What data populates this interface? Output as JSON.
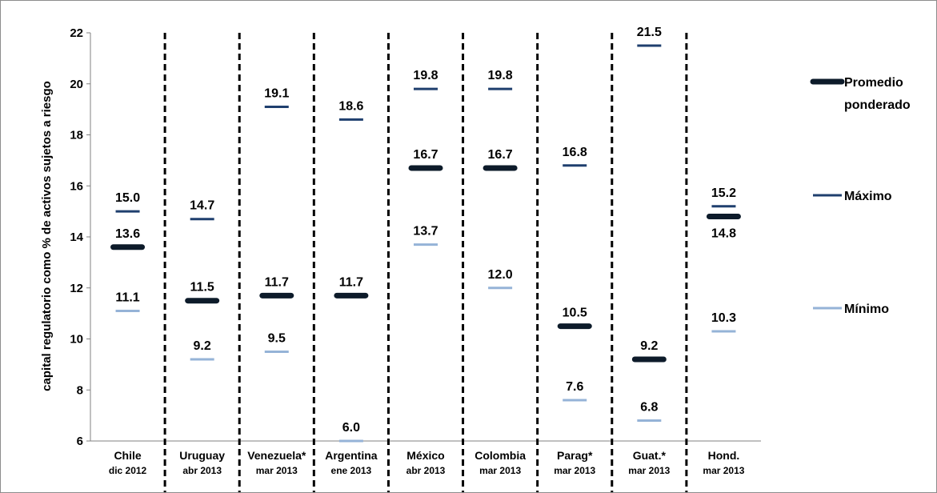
{
  "chart_data": {
    "type": "scatter",
    "ylabel": "capital regulatorio como % de activos sujetos a riesgo",
    "ylim": [
      6,
      22
    ],
    "y_ticks": [
      "6",
      "8",
      "10",
      "12",
      "14",
      "16",
      "18",
      "20",
      "22"
    ],
    "grid": false,
    "legend_position": "right",
    "categories": [
      {
        "name": "Chile",
        "date": "dic 2012"
      },
      {
        "name": "Uruguay",
        "date": "abr 2013"
      },
      {
        "name": "Venezuela*",
        "date": "mar 2013"
      },
      {
        "name": "Argentina",
        "date": "ene 2013"
      },
      {
        "name": "México",
        "date": "abr 2013"
      },
      {
        "name": "Colombia",
        "date": "mar 2013"
      },
      {
        "name": "Parag*",
        "date": "mar 2013"
      },
      {
        "name": "Guat.*",
        "date": "mar 2013"
      },
      {
        "name": "Hond.",
        "date": "mar 2013"
      }
    ],
    "series": [
      {
        "name": "Promedio ponderado",
        "color": "#0d1b2a",
        "values": [
          13.6,
          11.5,
          11.7,
          11.7,
          16.7,
          16.7,
          10.5,
          9.2,
          14.8
        ],
        "labels": [
          "13.6",
          "11.5",
          "11.7",
          "11.7",
          "16.7",
          "16.7",
          "10.5",
          "9.2",
          "14.8"
        ]
      },
      {
        "name": "Máximo",
        "color": "#1f3f6e",
        "values": [
          15.0,
          14.7,
          19.1,
          18.6,
          19.8,
          19.8,
          16.8,
          21.5,
          15.2
        ],
        "labels": [
          "15.0",
          "14.7",
          "19.1",
          "18.6",
          "19.8",
          "19.8",
          "16.8",
          "21.5",
          "15.2"
        ]
      },
      {
        "name": "Mínimo",
        "color": "#95b3d7",
        "values": [
          11.1,
          9.2,
          9.5,
          6.0,
          13.7,
          12.0,
          7.6,
          6.8,
          10.3
        ],
        "labels": [
          "11.1",
          "9.2",
          "9.5",
          "6.0",
          "13.7",
          "12.0",
          "7.6",
          "6.8",
          "10.3"
        ]
      }
    ],
    "legend": [
      {
        "lines": [
          "Promedio",
          "ponderado"
        ]
      },
      {
        "lines": [
          "Máximo"
        ]
      },
      {
        "lines": [
          "Mínimo"
        ]
      }
    ]
  }
}
